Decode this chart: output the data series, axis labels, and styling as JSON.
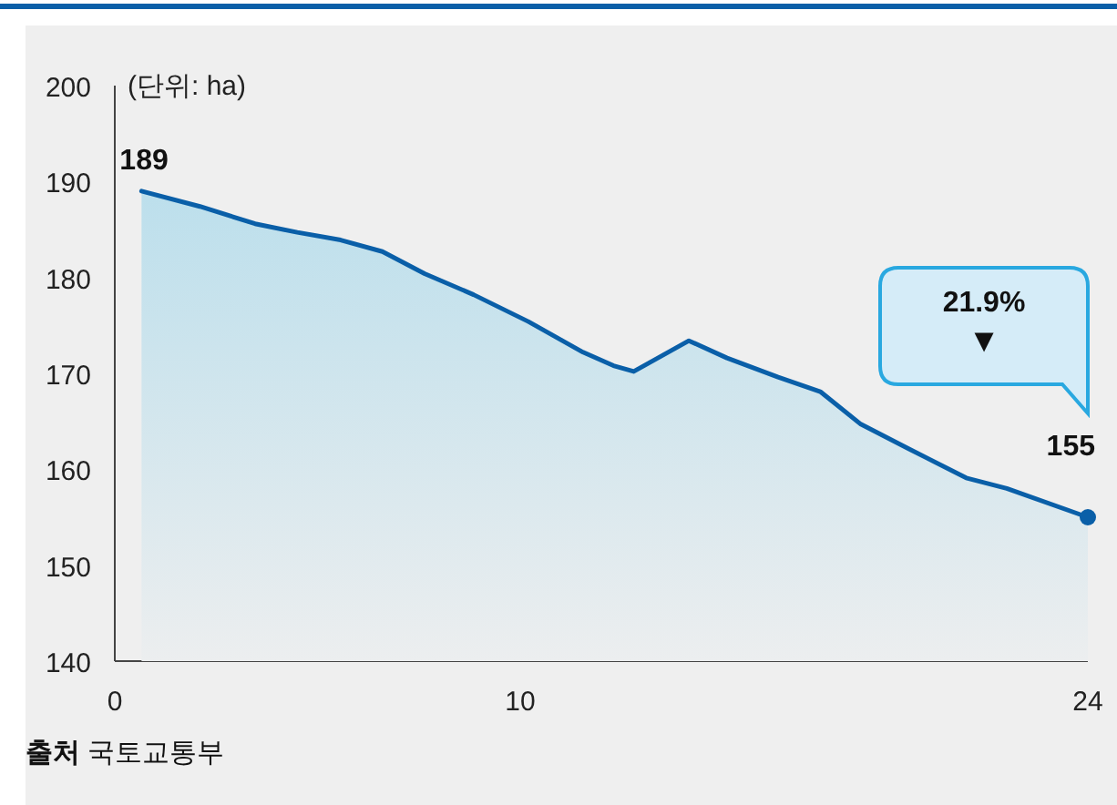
{
  "chart_data": {
    "type": "area",
    "ylabel": "(단위: ha)",
    "x": [
      0.66,
      2.1,
      3.46,
      4.5,
      5.57,
      6.6,
      7.64,
      8.85,
      10.2,
      11.55,
      12.3,
      12.8,
      14.16,
      15.1,
      16.36,
      17.4,
      18.4,
      19.6,
      21.0,
      22.0,
      24
    ],
    "series": [
      {
        "color": "#0a5fa8",
        "values": [
          189,
          187.4,
          185.6,
          184.7,
          183.9,
          182.7,
          180.4,
          178.2,
          175.4,
          172.2,
          170.8,
          170.2,
          173.4,
          171.6,
          169.6,
          168.1,
          164.7,
          162.1,
          159.1,
          158.0,
          155
        ]
      }
    ],
    "xlim": [
      0,
      24
    ],
    "xticks": [
      0,
      10,
      24
    ],
    "ylim": [
      140,
      200
    ],
    "yticks": [
      140,
      150,
      160,
      170,
      180,
      190,
      200
    ],
    "grid": false,
    "annotations": [
      {
        "text": "189",
        "x": 0.66,
        "y": 189
      },
      {
        "text": "155",
        "x": 24,
        "y": 155
      },
      "21.9%",
      "▼",
      "**출처** 국토교통부"
    ]
  }
}
